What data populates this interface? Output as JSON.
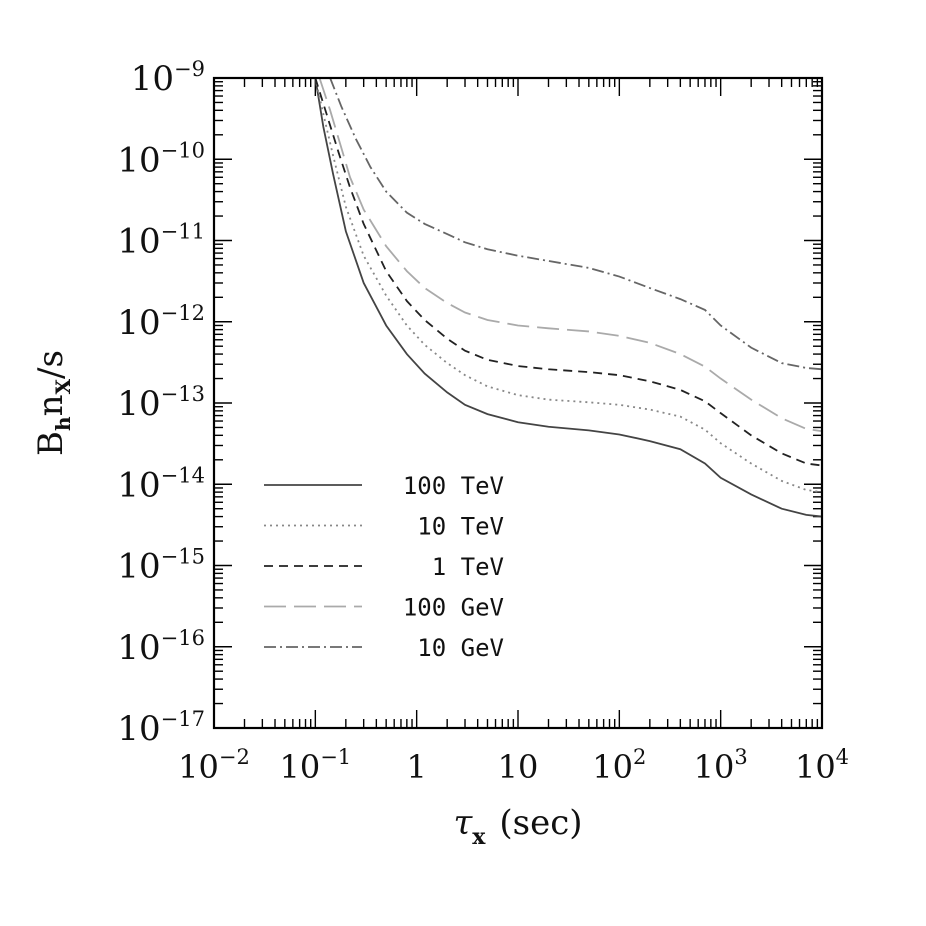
{
  "chart_data": {
    "type": "line",
    "xscale": "log",
    "yscale": "log",
    "xlim": [
      0.01,
      10000
    ],
    "ylim": [
      1e-17,
      1e-09
    ],
    "xlabel": {
      "main": "τ",
      "sub": "x",
      "unit": "(sec)"
    },
    "ylabel": {
      "main": "B",
      "sub_h": "h",
      "n": "n",
      "sub_x": "X",
      "rest": "/s"
    },
    "xticks": [
      {
        "value": 0.01,
        "base": "10",
        "exp": "−2"
      },
      {
        "value": 0.1,
        "base": "10",
        "exp": "−1"
      },
      {
        "value": 1,
        "base": "1",
        "exp": ""
      },
      {
        "value": 10,
        "base": "10",
        "exp": ""
      },
      {
        "value": 100,
        "base": "10",
        "exp": "2"
      },
      {
        "value": 1000,
        "base": "10",
        "exp": "3"
      },
      {
        "value": 10000,
        "base": "10",
        "exp": "4"
      }
    ],
    "yticks": [
      {
        "value": 1e-09,
        "base": "10",
        "exp": "−9"
      },
      {
        "value": 1e-10,
        "base": "10",
        "exp": "−10"
      },
      {
        "value": 1e-11,
        "base": "10",
        "exp": "−11"
      },
      {
        "value": 1e-12,
        "base": "10",
        "exp": "−12"
      },
      {
        "value": 1e-13,
        "base": "10",
        "exp": "−13"
      },
      {
        "value": 1e-14,
        "base": "10",
        "exp": "−14"
      },
      {
        "value": 1e-15,
        "base": "10",
        "exp": "−15"
      },
      {
        "value": 1e-16,
        "base": "10",
        "exp": "−16"
      },
      {
        "value": 1e-17,
        "base": "10",
        "exp": "−17"
      }
    ],
    "legend": {
      "placement": "lower-left"
    },
    "series": [
      {
        "name": "100 TeV",
        "color": "#444444",
        "dash": "",
        "points": [
          [
            0.1,
            1e-09
          ],
          [
            0.12,
            2.5e-10
          ],
          [
            0.15,
            6.5e-11
          ],
          [
            0.2,
            1.3e-11
          ],
          [
            0.3,
            3e-12
          ],
          [
            0.5,
            9e-13
          ],
          [
            0.8,
            4e-13
          ],
          [
            1.2,
            2.3e-13
          ],
          [
            2,
            1.35e-13
          ],
          [
            3,
            9.5e-14
          ],
          [
            5,
            7.3e-14
          ],
          [
            10,
            5.8e-14
          ],
          [
            20,
            5.1e-14
          ],
          [
            50,
            4.6e-14
          ],
          [
            100,
            4.1e-14
          ],
          [
            200,
            3.4e-14
          ],
          [
            400,
            2.7e-14
          ],
          [
            700,
            1.8e-14
          ],
          [
            1000,
            1.2e-14
          ],
          [
            2000,
            7.5e-15
          ],
          [
            4000,
            5e-15
          ],
          [
            7000,
            4.2e-15
          ],
          [
            10000,
            4e-15
          ]
        ]
      },
      {
        "name": "10 TeV",
        "color": "#888888",
        "dash": "2,4",
        "points": [
          [
            0.1,
            1e-09
          ],
          [
            0.12,
            3.6e-10
          ],
          [
            0.15,
            1.1e-10
          ],
          [
            0.2,
            2.6e-11
          ],
          [
            0.3,
            6.5e-12
          ],
          [
            0.5,
            2.1e-12
          ],
          [
            0.8,
            9e-13
          ],
          [
            1.2,
            5.2e-13
          ],
          [
            2,
            3.1e-13
          ],
          [
            3,
            2.2e-13
          ],
          [
            5,
            1.6e-13
          ],
          [
            10,
            1.25e-13
          ],
          [
            20,
            1.1e-13
          ],
          [
            50,
            1.02e-13
          ],
          [
            100,
            9.5e-14
          ],
          [
            200,
            8.3e-14
          ],
          [
            400,
            6.8e-14
          ],
          [
            700,
            4.7e-14
          ],
          [
            1000,
            3.2e-14
          ],
          [
            2000,
            1.8e-14
          ],
          [
            4000,
            1.1e-14
          ],
          [
            7000,
            8.5e-15
          ],
          [
            10000,
            8e-15
          ]
        ]
      },
      {
        "name": "1 TeV",
        "color": "#222222",
        "dash": "9,6",
        "points": [
          [
            0.1,
            1e-09
          ],
          [
            0.13,
            3.5e-10
          ],
          [
            0.17,
            1.2e-10
          ],
          [
            0.22,
            4.5e-11
          ],
          [
            0.3,
            1.6e-11
          ],
          [
            0.5,
            4.2e-12
          ],
          [
            0.8,
            1.8e-12
          ],
          [
            1.2,
            1.05e-12
          ],
          [
            2,
            6.2e-13
          ],
          [
            3,
            4.4e-13
          ],
          [
            5,
            3.4e-13
          ],
          [
            10,
            2.85e-13
          ],
          [
            20,
            2.6e-13
          ],
          [
            50,
            2.4e-13
          ],
          [
            100,
            2.2e-13
          ],
          [
            200,
            1.85e-13
          ],
          [
            400,
            1.45e-13
          ],
          [
            700,
            1.05e-13
          ],
          [
            1000,
            7.5e-14
          ],
          [
            2000,
            4e-14
          ],
          [
            4000,
            2.4e-14
          ],
          [
            7000,
            1.8e-14
          ],
          [
            10000,
            1.7e-14
          ]
        ]
      },
      {
        "name": "100 GeV",
        "color": "#aaaaaa",
        "dash": "22,8",
        "points": [
          [
            0.11,
            1e-09
          ],
          [
            0.14,
            4e-10
          ],
          [
            0.18,
            1.4e-10
          ],
          [
            0.22,
            6e-11
          ],
          [
            0.3,
            2.4e-11
          ],
          [
            0.5,
            8.5e-12
          ],
          [
            0.8,
            4.2e-12
          ],
          [
            1.2,
            2.6e-12
          ],
          [
            2,
            1.7e-12
          ],
          [
            3,
            1.3e-12
          ],
          [
            5,
            1.05e-12
          ],
          [
            10,
            9e-13
          ],
          [
            20,
            8.3e-13
          ],
          [
            50,
            7.6e-13
          ],
          [
            100,
            6.7e-13
          ],
          [
            200,
            5.5e-13
          ],
          [
            400,
            4e-13
          ],
          [
            700,
            2.8e-13
          ],
          [
            1000,
            2e-13
          ],
          [
            2000,
            1.1e-13
          ],
          [
            4000,
            6.5e-14
          ],
          [
            7000,
            4.8e-14
          ],
          [
            10000,
            4.5e-14
          ]
        ]
      },
      {
        "name": "10 GeV",
        "color": "#666666",
        "dash": "12,4,2,4",
        "points": [
          [
            0.14,
            1e-09
          ],
          [
            0.18,
            4.5e-10
          ],
          [
            0.25,
            1.8e-10
          ],
          [
            0.35,
            8e-11
          ],
          [
            0.5,
            4e-11
          ],
          [
            0.8,
            2.2e-11
          ],
          [
            1.2,
            1.6e-11
          ],
          [
            2,
            1.2e-11
          ],
          [
            3,
            9.5e-12
          ],
          [
            5,
            7.8e-12
          ],
          [
            10,
            6.5e-12
          ],
          [
            20,
            5.6e-12
          ],
          [
            50,
            4.6e-12
          ],
          [
            100,
            3.6e-12
          ],
          [
            200,
            2.6e-12
          ],
          [
            400,
            1.9e-12
          ],
          [
            700,
            1.4e-12
          ],
          [
            1000,
            9e-13
          ],
          [
            2000,
            4.8e-13
          ],
          [
            4000,
            3.1e-13
          ],
          [
            7000,
            2.7e-13
          ],
          [
            10000,
            2.6e-13
          ]
        ]
      }
    ]
  }
}
